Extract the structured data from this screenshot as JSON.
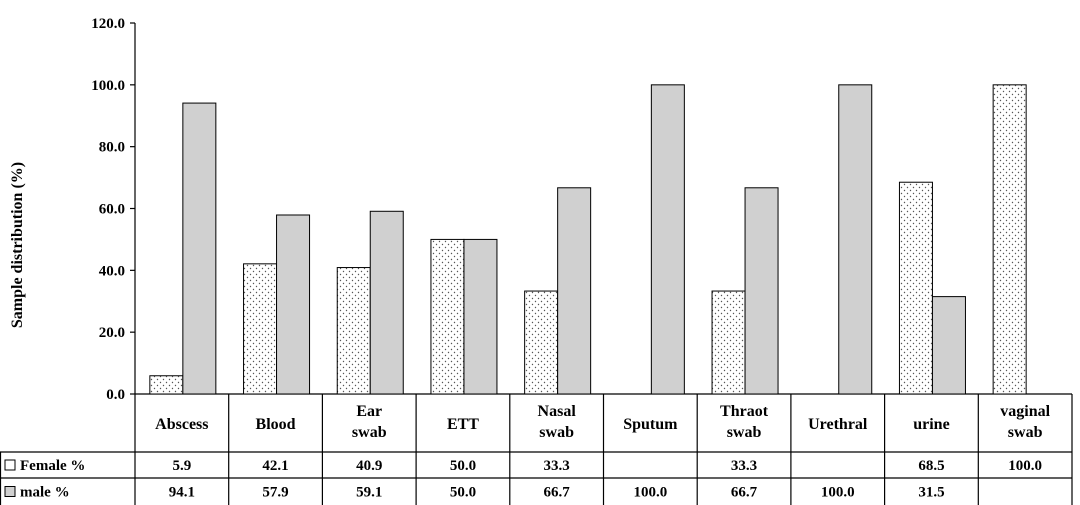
{
  "chart_data": {
    "type": "bar",
    "ylabel": "Sample distribution (%)",
    "ylim": [
      0,
      120
    ],
    "yticks": [
      "0.0",
      "20.0",
      "40.0",
      "60.0",
      "80.0",
      "100.0",
      "120.0"
    ],
    "categories": [
      [
        "Abscess"
      ],
      [
        "Blood"
      ],
      [
        "Ear",
        "swab"
      ],
      [
        "ETT"
      ],
      [
        "Nasal",
        "swab"
      ],
      [
        "Sputum"
      ],
      [
        "Thraot",
        "swab"
      ],
      [
        "Urethral"
      ],
      [
        "urine"
      ],
      [
        "vaginal",
        "swab"
      ]
    ],
    "series": [
      {
        "name": "Female %",
        "values": [
          5.9,
          42.1,
          40.9,
          50.0,
          33.3,
          null,
          33.3,
          null,
          68.5,
          100.0
        ],
        "labels": [
          "5.9",
          "42.1",
          "40.9",
          "50.0",
          "33.3",
          "",
          "33.3",
          "",
          "68.5",
          "100.0"
        ],
        "fill": "dotted",
        "color": "#ffffff"
      },
      {
        "name": "male %",
        "values": [
          94.1,
          57.9,
          59.1,
          50.0,
          66.7,
          100.0,
          66.7,
          100.0,
          31.5,
          null
        ],
        "labels": [
          "94.1",
          "57.9",
          "59.1",
          "50.0",
          "66.7",
          "100.0",
          "66.7",
          "100.0",
          "31.5",
          ""
        ],
        "fill": "solid",
        "color": "#d0d0d0"
      }
    ],
    "grid": false,
    "legend": "data-table"
  }
}
